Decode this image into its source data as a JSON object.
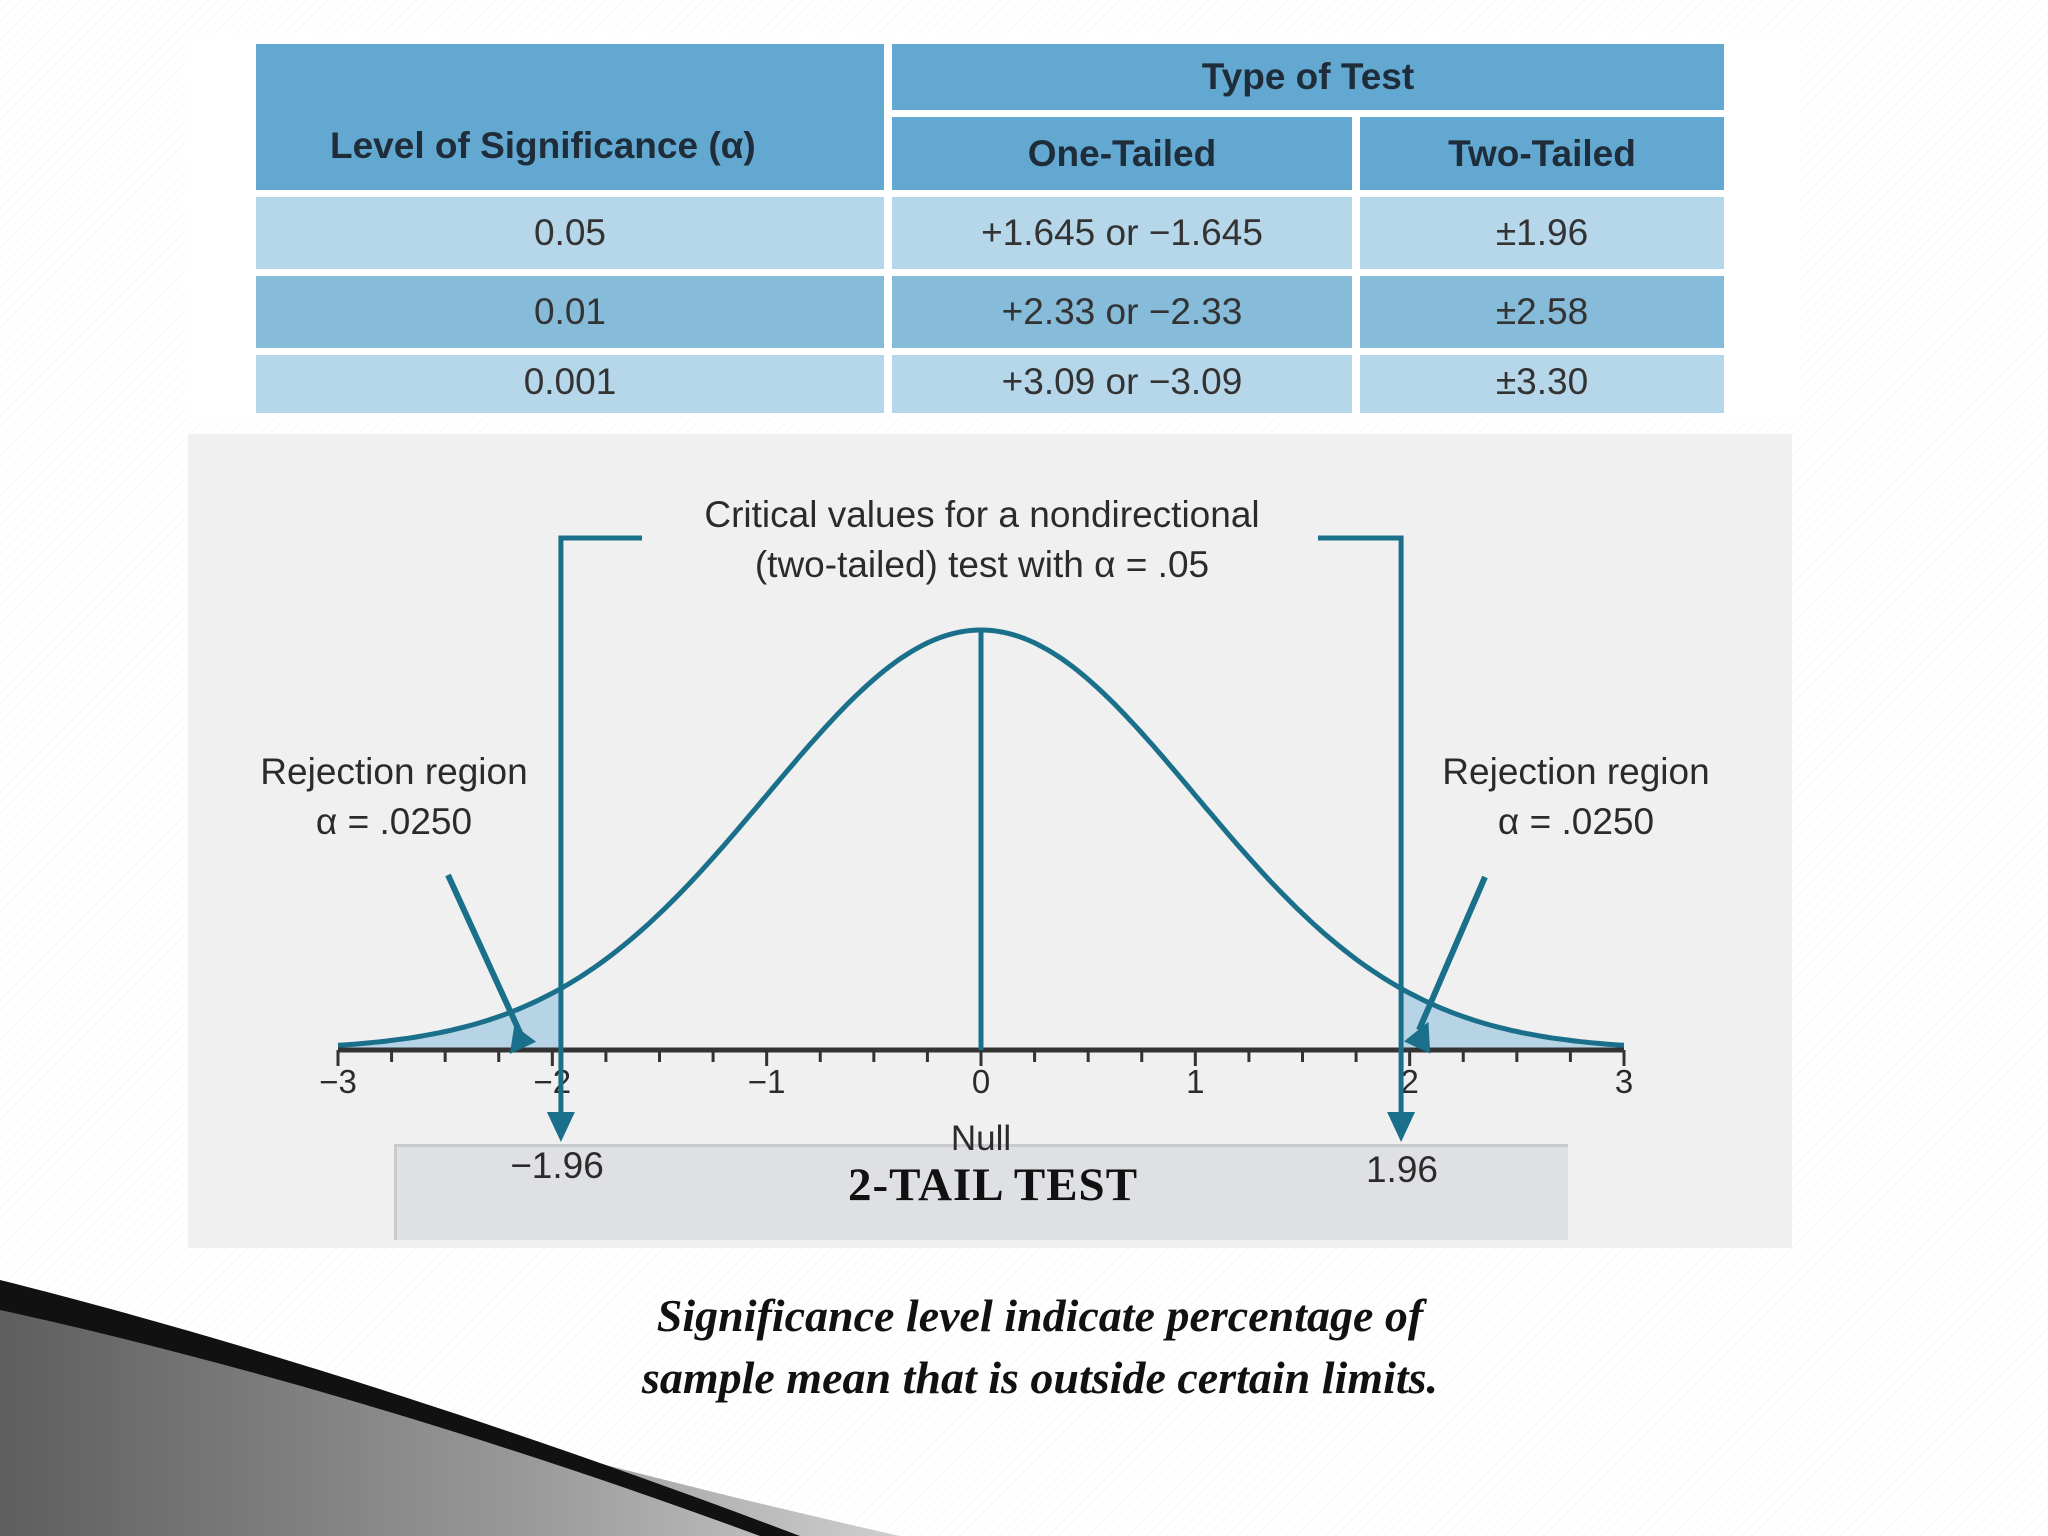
{
  "table": {
    "header_alpha": "Level of Significance (α)",
    "header_type": "Type of Test",
    "header_one": "One-Tailed",
    "header_two": "Two-Tailed",
    "rows": [
      {
        "alpha": "0.05",
        "one": "+1.645 or −1.645",
        "two": "±1.96"
      },
      {
        "alpha": "0.01",
        "one": "+2.33 or −2.33",
        "two": "±2.58"
      },
      {
        "alpha": "0.001",
        "one": "+3.09 or −3.09",
        "two": "±3.30"
      }
    ]
  },
  "chart_data": {
    "type": "area",
    "distribution": "standard normal",
    "xlim": [
      -3,
      3
    ],
    "x_ticks": [
      "−3",
      "−2",
      "−1",
      "0",
      "1",
      "2",
      "3"
    ],
    "x_tick_values": [
      -3,
      -2,
      -1,
      0,
      1,
      2,
      3
    ],
    "center_label": "Null",
    "critical_values": [
      -1.96,
      1.96
    ],
    "critical_labels": [
      "−1.96",
      "1.96"
    ],
    "callout_line1": "Critical values for a nondirectional",
    "callout_line2": "(two-tailed) test with α = .05",
    "rejection_left": {
      "line1": "Rejection region",
      "line2": "α = .0250"
    },
    "rejection_right": {
      "line1": "Rejection region",
      "line2": "α = .0250"
    },
    "colors": {
      "curve": "#1a6f8a",
      "shade": "#b7d4e6",
      "panel": "#f0f0f1"
    }
  },
  "caption": "2-TAIL  TEST",
  "note": {
    "line1": "Significance level indicate  percentage of",
    "line2": "sample mean that is outside certain limits."
  }
}
